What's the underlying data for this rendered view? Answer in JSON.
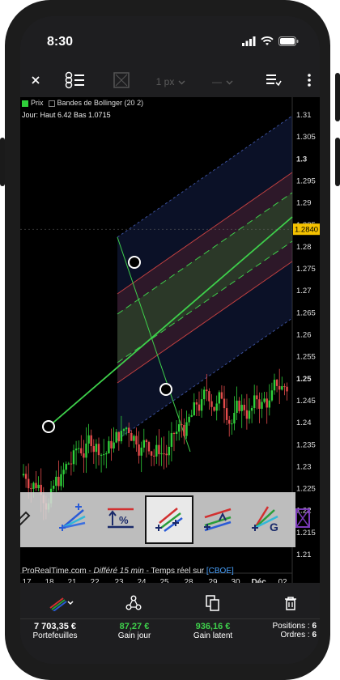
{
  "status_bar": {
    "time": "8:30"
  },
  "toolbar": {
    "close_icon": "close-icon",
    "style_icon": "drawing-style-icon",
    "width_value": "1 px",
    "line_style": "—",
    "menu_icon": "object-list-icon",
    "more_icon": "more-vertical-icon"
  },
  "chart": {
    "legend": {
      "price_label": "Prix",
      "indicator_label": "Bandes de Bollinger (20 2)"
    },
    "ohlc_text": "Jour: Haut 6.42 Bas 1.0715",
    "current_price": "1.2840",
    "colors": {
      "up": "#2fcf3a",
      "down": "#e34b4b",
      "channel_line": "#3ed04b",
      "price_badge": "#f5c200"
    }
  },
  "chart_data": {
    "type": "candlestick",
    "x_ticks": [
      "17",
      "18",
      "21",
      "22",
      "23",
      "24",
      "25",
      "28",
      "29",
      "30",
      "Déc.",
      "02"
    ],
    "y_ticks": [
      "1.31",
      "1.305",
      "1.3",
      "1.295",
      "1.29",
      "1.285",
      "1.28",
      "1.275",
      "1.27",
      "1.265",
      "1.26",
      "1.255",
      "1.25",
      "1.245",
      "1.24",
      "1.235",
      "1.23",
      "1.225",
      "1.22",
      "1.215",
      "1.21"
    ],
    "ylim": [
      1.21,
      1.31
    ],
    "last_price": 1.284,
    "grid": false
  },
  "drawing_tools": {
    "items": [
      {
        "name": "fibonacci-fan-tool"
      },
      {
        "name": "percent-range-tool"
      },
      {
        "name": "regression-channel-tool",
        "selected": true
      },
      {
        "name": "parallel-channel-tool"
      },
      {
        "name": "gann-fan-tool"
      }
    ]
  },
  "source": {
    "site": "ProRealTime.com",
    "delayed": "Différé 15 min",
    "realtime": "Temps réel sur",
    "exchange": "[CBOE]"
  },
  "bottom_bar": {
    "tools_icon": "drawing-tools-icon",
    "share_icon": "share-icon",
    "copy_icon": "duplicate-icon",
    "delete_icon": "trash-icon"
  },
  "footer": {
    "portfolio_value": "7 703,35 €",
    "portfolio_label": "Portefeuilles",
    "day_gain_value": "87,27 €",
    "day_gain_label": "Gain jour",
    "latent_gain_value": "936,16 €",
    "latent_gain_label": "Gain latent",
    "positions_label": "Positions :",
    "positions_value": "6",
    "orders_label": "Ordres :",
    "orders_value": "6"
  }
}
